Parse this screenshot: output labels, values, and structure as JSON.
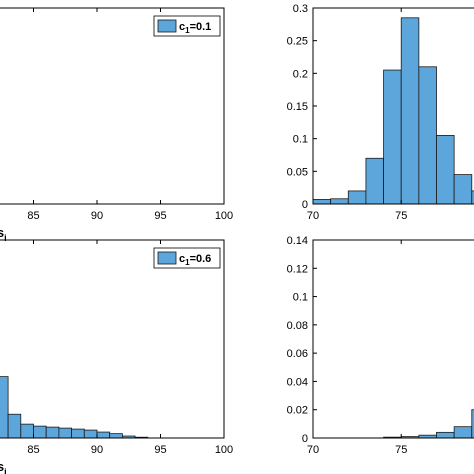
{
  "chart_data": [
    {
      "type": "bar",
      "panel": "top-left",
      "legend": "c",
      "legend_sub": "1",
      "legend_value": "=0.1",
      "legend_position": "top-right",
      "xlabel": "s",
      "xlabel_sub": "i",
      "xlim": [
        80,
        100
      ],
      "xticks": [
        85,
        90,
        95,
        100
      ],
      "bin_width": 1,
      "bars": []
    },
    {
      "type": "bar",
      "panel": "top-right",
      "xlim": [
        70,
        84
      ],
      "xticks": [
        70,
        75,
        80
      ],
      "ylim": [
        0,
        0.3
      ],
      "yticks": [
        0,
        0.05,
        0.1,
        0.15,
        0.2,
        0.25,
        0.3
      ],
      "ytick_labels": [
        "0",
        "0.05",
        "0.1",
        "0.15",
        "0.2",
        "0.25",
        "0.3"
      ],
      "bin_width": 1,
      "bars": [
        {
          "x": 70,
          "y": 0.007
        },
        {
          "x": 71,
          "y": 0.008
        },
        {
          "x": 72,
          "y": 0.02
        },
        {
          "x": 73,
          "y": 0.07
        },
        {
          "x": 74,
          "y": 0.205
        },
        {
          "x": 75,
          "y": 0.285
        },
        {
          "x": 76,
          "y": 0.21
        },
        {
          "x": 77,
          "y": 0.105
        },
        {
          "x": 78,
          "y": 0.045
        },
        {
          "x": 79,
          "y": 0.02
        },
        {
          "x": 80,
          "y": 0.01
        },
        {
          "x": 81,
          "y": 0.005
        },
        {
          "x": 82,
          "y": 0.003
        },
        {
          "x": 83,
          "y": 0.002
        }
      ]
    },
    {
      "type": "bar",
      "panel": "bottom-left",
      "legend": "c",
      "legend_sub": "1",
      "legend_value": "=0.6",
      "legend_position": "top-right",
      "xlabel": "s",
      "xlabel_sub": "i",
      "xlim": [
        80,
        100
      ],
      "xticks": [
        85,
        90,
        95,
        100
      ],
      "bin_width": 1,
      "bars": [
        {
          "x": 80,
          "y": 0.96
        },
        {
          "x": 81,
          "y": 0.72
        },
        {
          "x": 82,
          "y": 0.31
        },
        {
          "x": 83,
          "y": 0.12
        },
        {
          "x": 84,
          "y": 0.07
        },
        {
          "x": 85,
          "y": 0.06
        },
        {
          "x": 86,
          "y": 0.055
        },
        {
          "x": 87,
          "y": 0.05
        },
        {
          "x": 88,
          "y": 0.045
        },
        {
          "x": 89,
          "y": 0.04
        },
        {
          "x": 90,
          "y": 0.03
        },
        {
          "x": 91,
          "y": 0.022
        },
        {
          "x": 92,
          "y": 0.01
        },
        {
          "x": 93,
          "y": 0.004
        }
      ]
    },
    {
      "type": "bar",
      "panel": "bottom-right",
      "xlim": [
        70,
        84
      ],
      "xticks": [
        70,
        75,
        80
      ],
      "ylim": [
        0,
        0.14
      ],
      "yticks": [
        0,
        0.02,
        0.04,
        0.06,
        0.08,
        0.1,
        0.12,
        0.14
      ],
      "ytick_labels": [
        "0",
        "0.02",
        "0.04",
        "0.06",
        "0.08",
        "0.1",
        "0.12",
        "0.14"
      ],
      "bin_width": 1,
      "bars": [
        {
          "x": 74,
          "y": 0.0006
        },
        {
          "x": 75,
          "y": 0.001
        },
        {
          "x": 76,
          "y": 0.002
        },
        {
          "x": 77,
          "y": 0.004
        },
        {
          "x": 78,
          "y": 0.008
        },
        {
          "x": 79,
          "y": 0.02
        },
        {
          "x": 80,
          "y": 0.049
        },
        {
          "x": 81,
          "y": 0.074
        },
        {
          "x": 82,
          "y": 0.111
        },
        {
          "x": 83,
          "y": 0.127
        },
        {
          "x": 84,
          "y": 0.129
        }
      ]
    }
  ]
}
